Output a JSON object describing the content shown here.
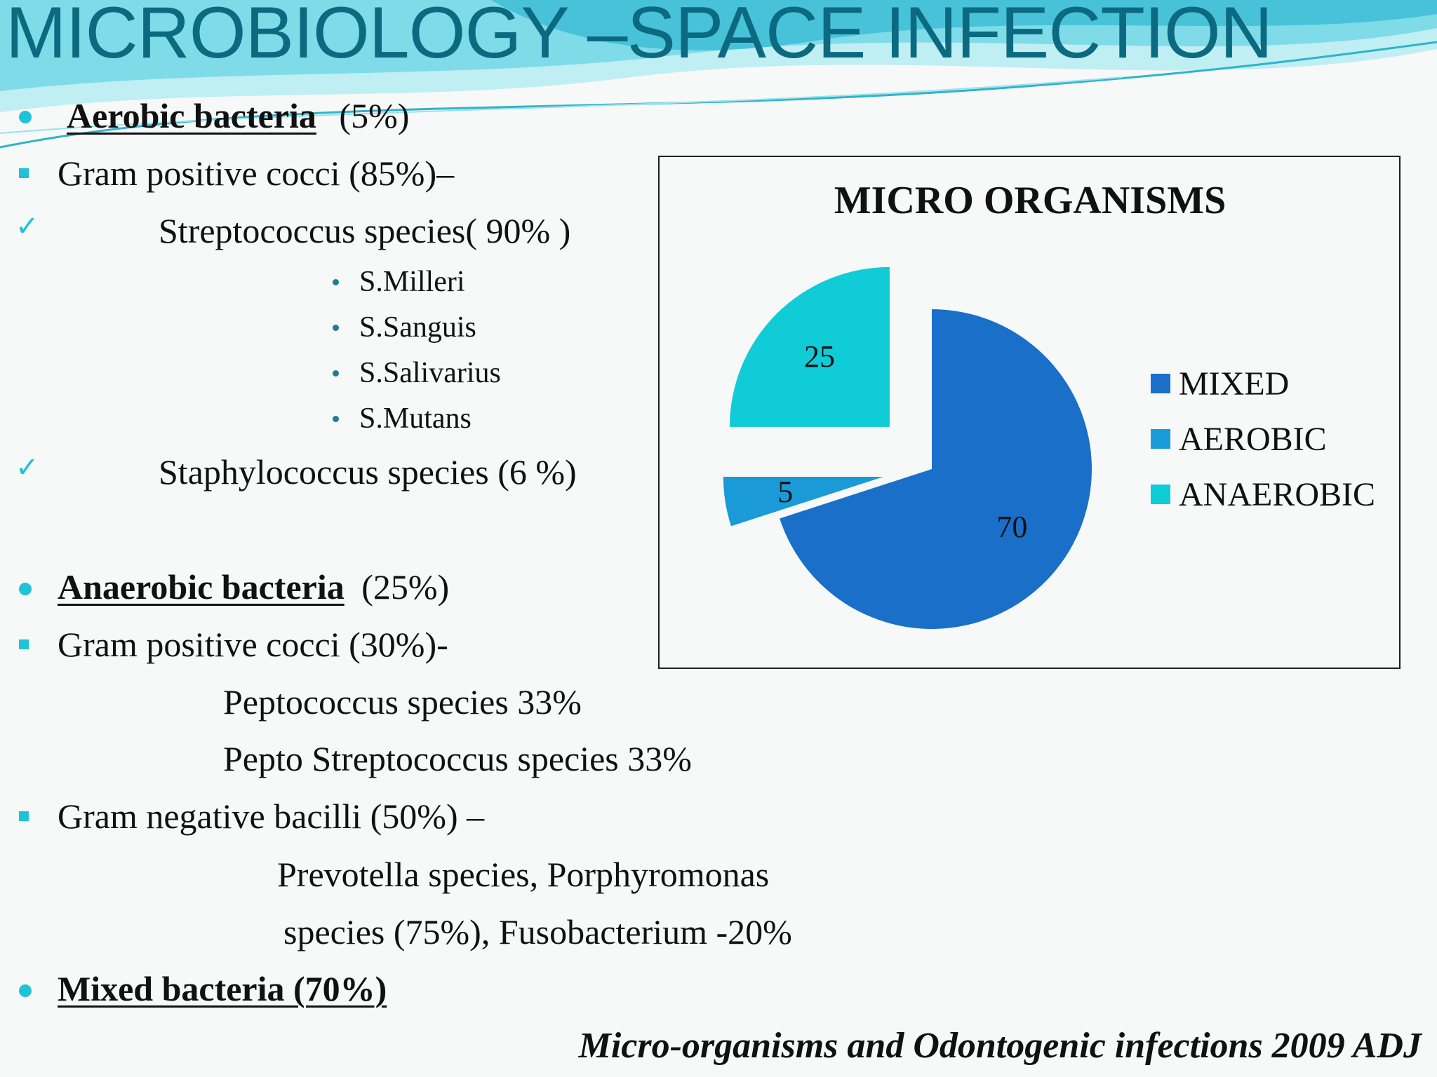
{
  "title": "MICROBIOLOGY –SPACE INFECTION",
  "colors": {
    "accent": "#1fc3d6",
    "title": "#0c6a80",
    "mixed": "#1a6fc9",
    "aerobic": "#1a9ad6",
    "anaerobic": "#10ccd6"
  },
  "aerobic": {
    "heading": "Aerobic bacteria",
    "pct": "(5%)"
  },
  "gpc1": "Gram positive cocci (85%)–",
  "strep": "Streptococcus species( 90% )",
  "strep_list": [
    "S.Milleri",
    "S.Sanguis",
    "S.Salivarius",
    "S.Mutans"
  ],
  "staph": "Staphylococcus species (6 %)",
  "anaerobic": {
    "heading": "Anaerobic bacteria",
    "pct": "(25%)"
  },
  "gpc2": "Gram positive cocci (30%)-",
  "pepto1": "Peptococcus species  33%",
  "pepto2": "Pepto Streptococcus species 33%",
  "gnb": "Gram negative bacilli (50%) –",
  "prevo1": "Prevotella species, Porphyromonas",
  "prevo2": "species   (75%), Fusobacterium -20%",
  "mixed": "Mixed bacteria (70%)",
  "citation": "Micro-organisms and Odontogenic infections  2009  ADJ",
  "chart_data": {
    "type": "pie",
    "title": "MICRO ORGANISMS",
    "categories": [
      "MIXED",
      "AEROBIC",
      "ANAEROBIC"
    ],
    "values": [
      70,
      5,
      25
    ],
    "legend": "right",
    "exploded": true
  }
}
